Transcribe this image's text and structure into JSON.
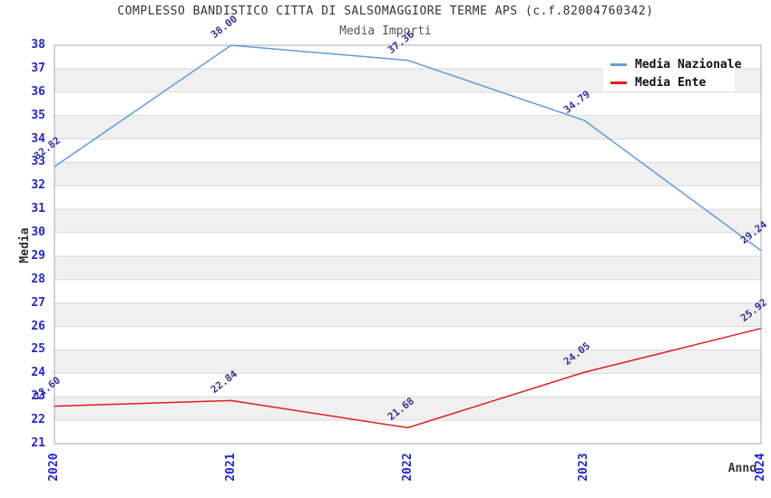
{
  "chart_data": {
    "type": "line",
    "title": "COMPLESSO BANDISTICO CITTA DI SALSOMAGGIORE TERME APS (c.f.82004760342)",
    "subtitle": "Media Importi",
    "xlabel": "Anno",
    "ylabel": "Media",
    "categories": [
      "2020",
      "2021",
      "2022",
      "2023",
      "2024"
    ],
    "yticks": [
      21,
      22,
      23,
      24,
      25,
      26,
      27,
      28,
      29,
      30,
      31,
      32,
      33,
      34,
      35,
      36,
      37,
      38
    ],
    "ylim": [
      21,
      38
    ],
    "series": [
      {
        "name": "Media Nazionale",
        "color": "#5f9de0",
        "values": [
          32.82,
          38.0,
          37.36,
          34.79,
          29.24
        ],
        "labels": [
          "32.82",
          "38.00",
          "37.36",
          "34.79",
          "29.24"
        ]
      },
      {
        "name": "Media Ente",
        "color": "#e01f1f",
        "values": [
          22.6,
          22.84,
          21.68,
          24.05,
          25.92
        ],
        "labels": [
          "22.60",
          "22.84",
          "21.68",
          "24.05",
          "25.92"
        ]
      }
    ],
    "legend_position": "top-right",
    "grid": {
      "alternating_bands": true,
      "band_fill": "#f0f0f0",
      "line_color": "#d9d9d9",
      "frame_color": "#aaaaaa"
    },
    "axis": {
      "tick_color": "#2424d6",
      "data_label_color": "#333399"
    }
  }
}
